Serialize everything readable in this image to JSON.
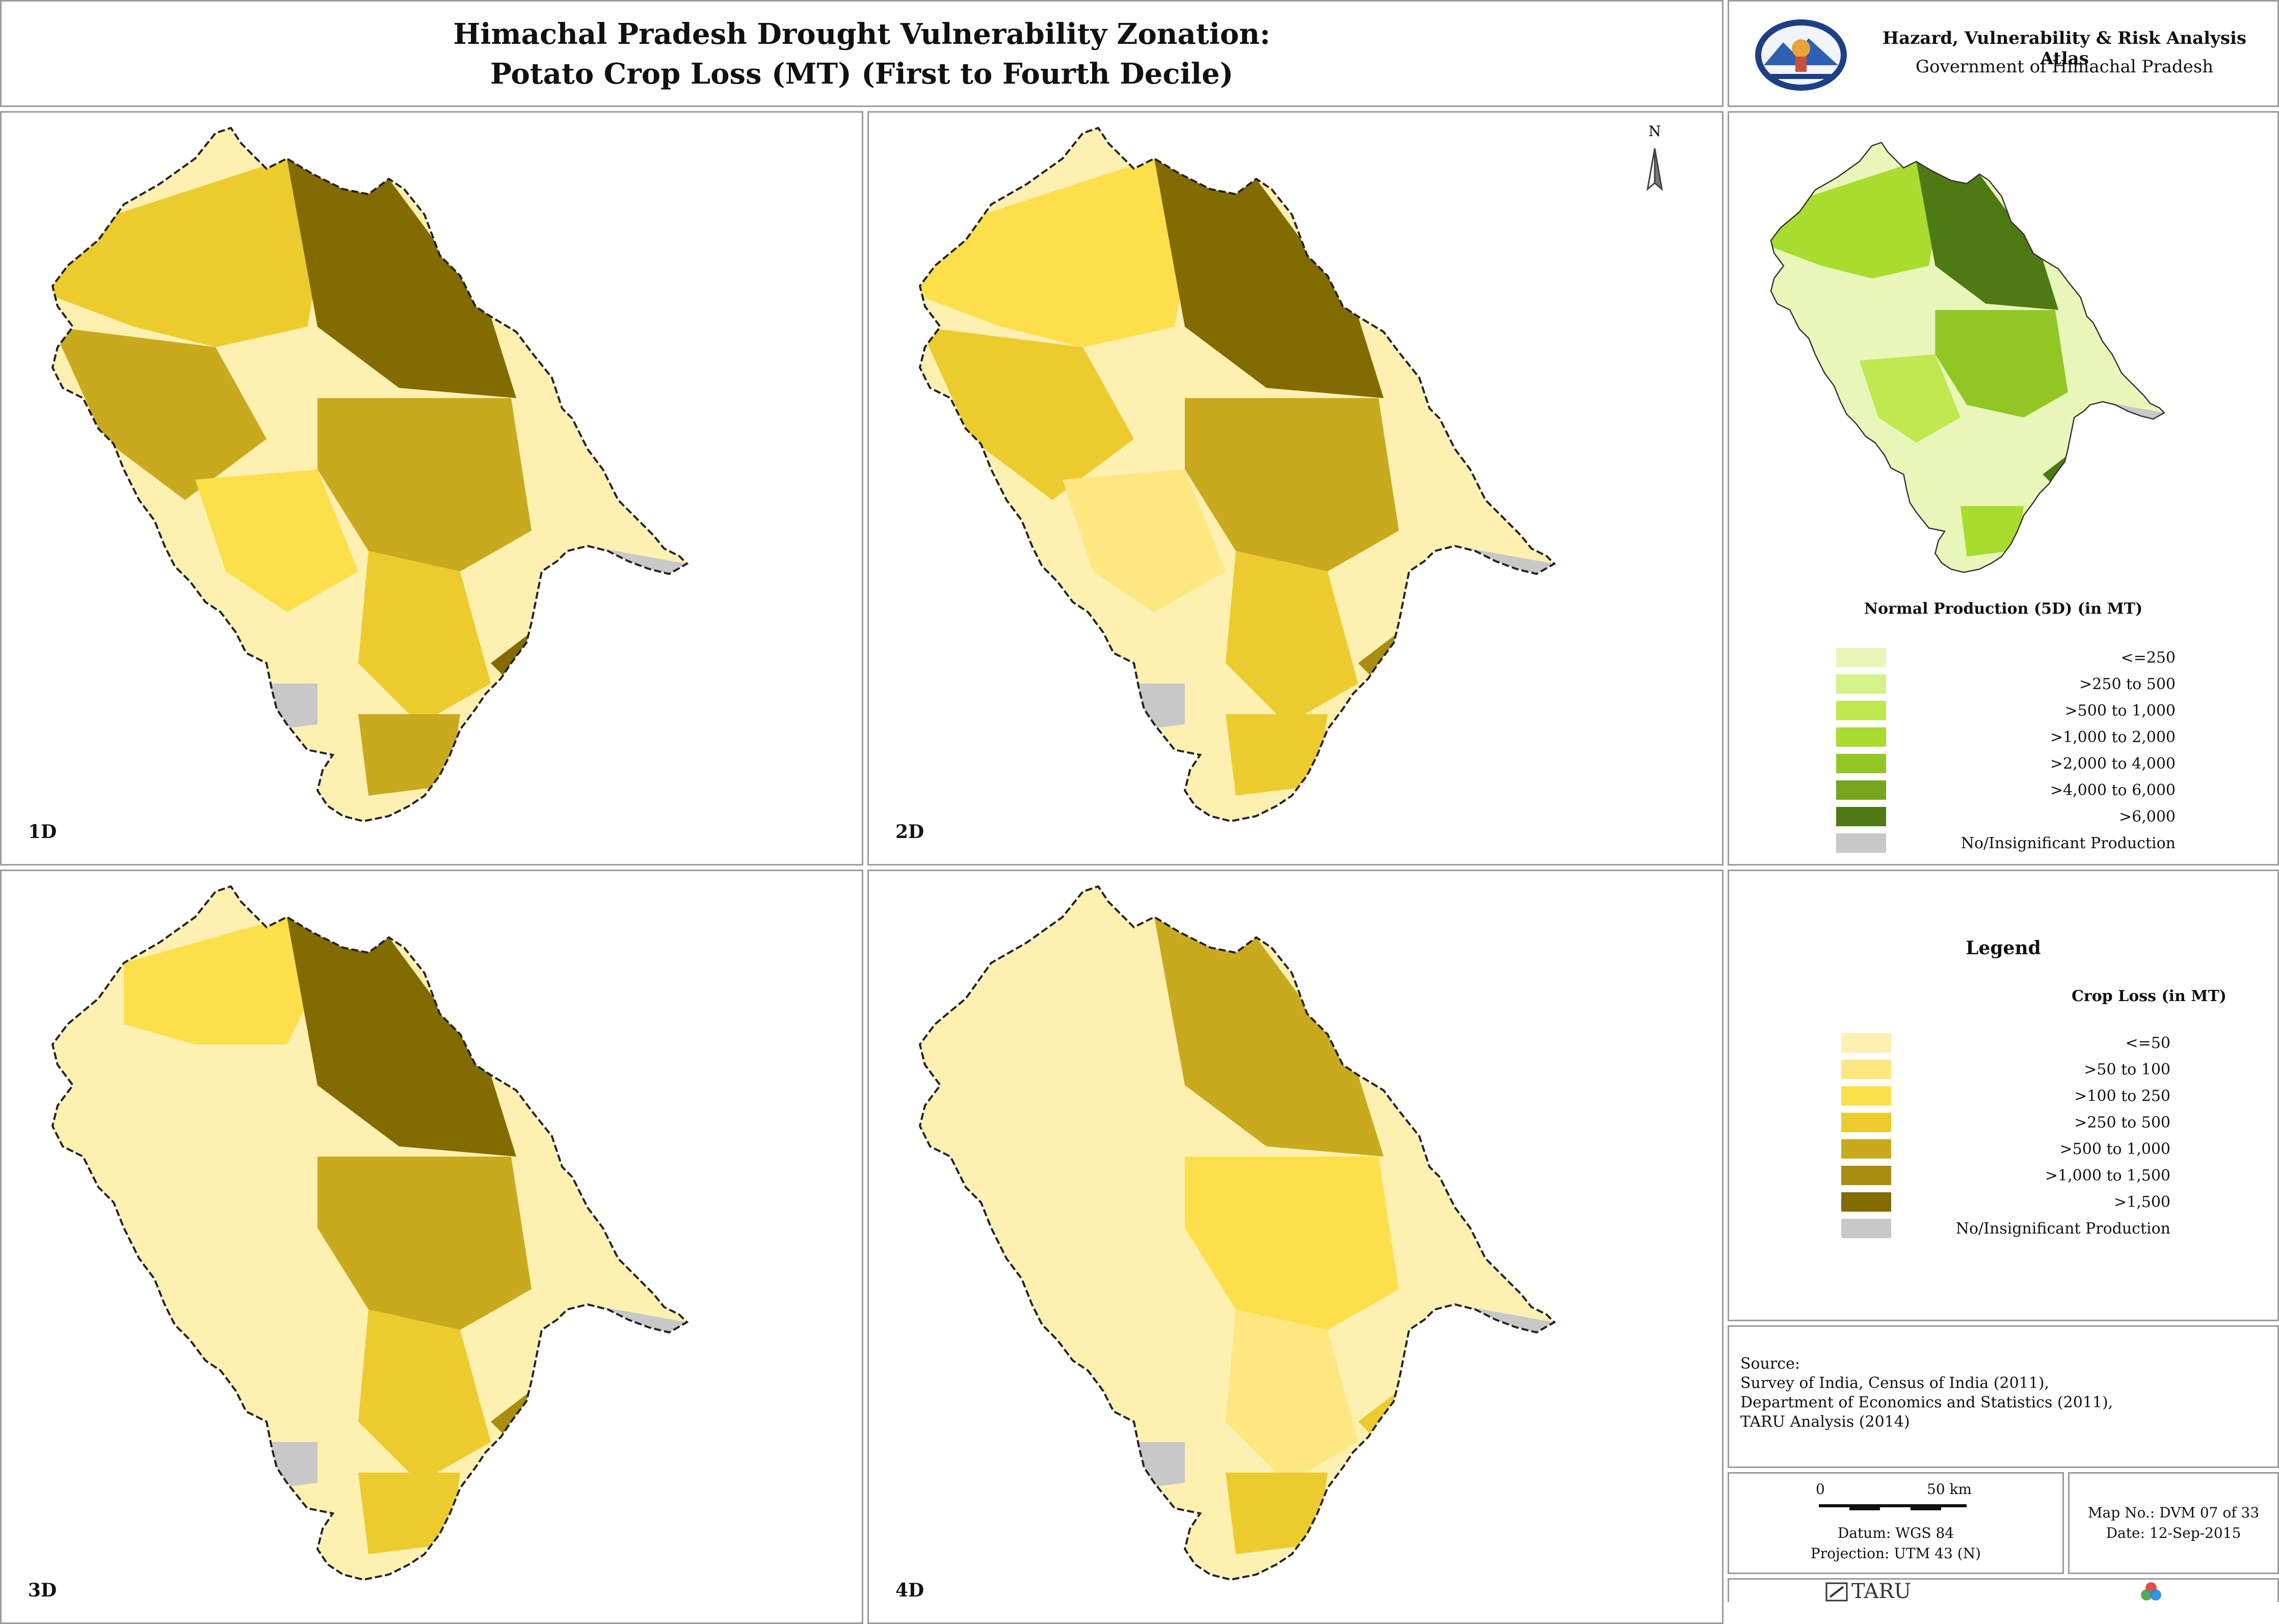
{
  "title": {
    "line1": "Himachal Pradesh Drought Vulnerability Zonation:",
    "line2": "Potato Crop Loss (MT) (First to Fourth Decile)"
  },
  "atlas": {
    "name": "Hazard, Vulnerability & Risk Analysis Atlas",
    "government": "Government of Himachal Pradesh"
  },
  "maps": [
    {
      "label": "1D"
    },
    {
      "label": "2D"
    },
    {
      "label": "3D"
    },
    {
      "label": "4D"
    }
  ],
  "north_label": "N",
  "normal_production": {
    "title": "Normal Production (5D) (in MT)",
    "classes": [
      {
        "label": "<=250",
        "color": "#e8f7b9"
      },
      {
        "label": ">250 to 500",
        "color": "#d5f288"
      },
      {
        "label": ">500 to 1,000",
        "color": "#bfe94f"
      },
      {
        "label": ">1,000 to 2,000",
        "color": "#a8dc2e"
      },
      {
        "label": ">2,000 to 4,000",
        "color": "#92c624"
      },
      {
        "label": ">4,000 to 6,000",
        "color": "#76a61e"
      },
      {
        "label": ">6,000",
        "color": "#4d7a12"
      },
      {
        "label": "No/Insignificant Production",
        "color": "#c8c8c8"
      }
    ]
  },
  "legend": {
    "title": "Legend",
    "subtitle": "Crop Loss (in MT)",
    "classes": [
      {
        "label": "<=50",
        "color": "#fdf0b0"
      },
      {
        "label": ">50 to 100",
        "color": "#fde780"
      },
      {
        "label": ">100 to 250",
        "color": "#fcdf4a"
      },
      {
        "label": ">250 to 500",
        "color": "#eccb2e"
      },
      {
        "label": ">500 to 1,000",
        "color": "#c9aa1e"
      },
      {
        "label": ">1,000 to 1,500",
        "color": "#a88d10"
      },
      {
        "label": ">1,500",
        "color": "#826b00"
      },
      {
        "label": "No/Insignificant Production",
        "color": "#c8c8c8"
      }
    ]
  },
  "source": {
    "heading": "Source:",
    "lines": [
      "Survey of India, Census of India (2011),",
      "Department of Economics and Statistics (2011),",
      "TARU Analysis (2014)"
    ]
  },
  "scale": {
    "start": "0",
    "end": "50 km",
    "datum": "Datum: WGS 84",
    "projection": "Projection: UTM 43 (N)"
  },
  "map_info": {
    "number": "Map No.: DVM 07 of 33",
    "date": "Date: 12-Sep-2015"
  },
  "footer": {
    "brand": "TARU"
  }
}
